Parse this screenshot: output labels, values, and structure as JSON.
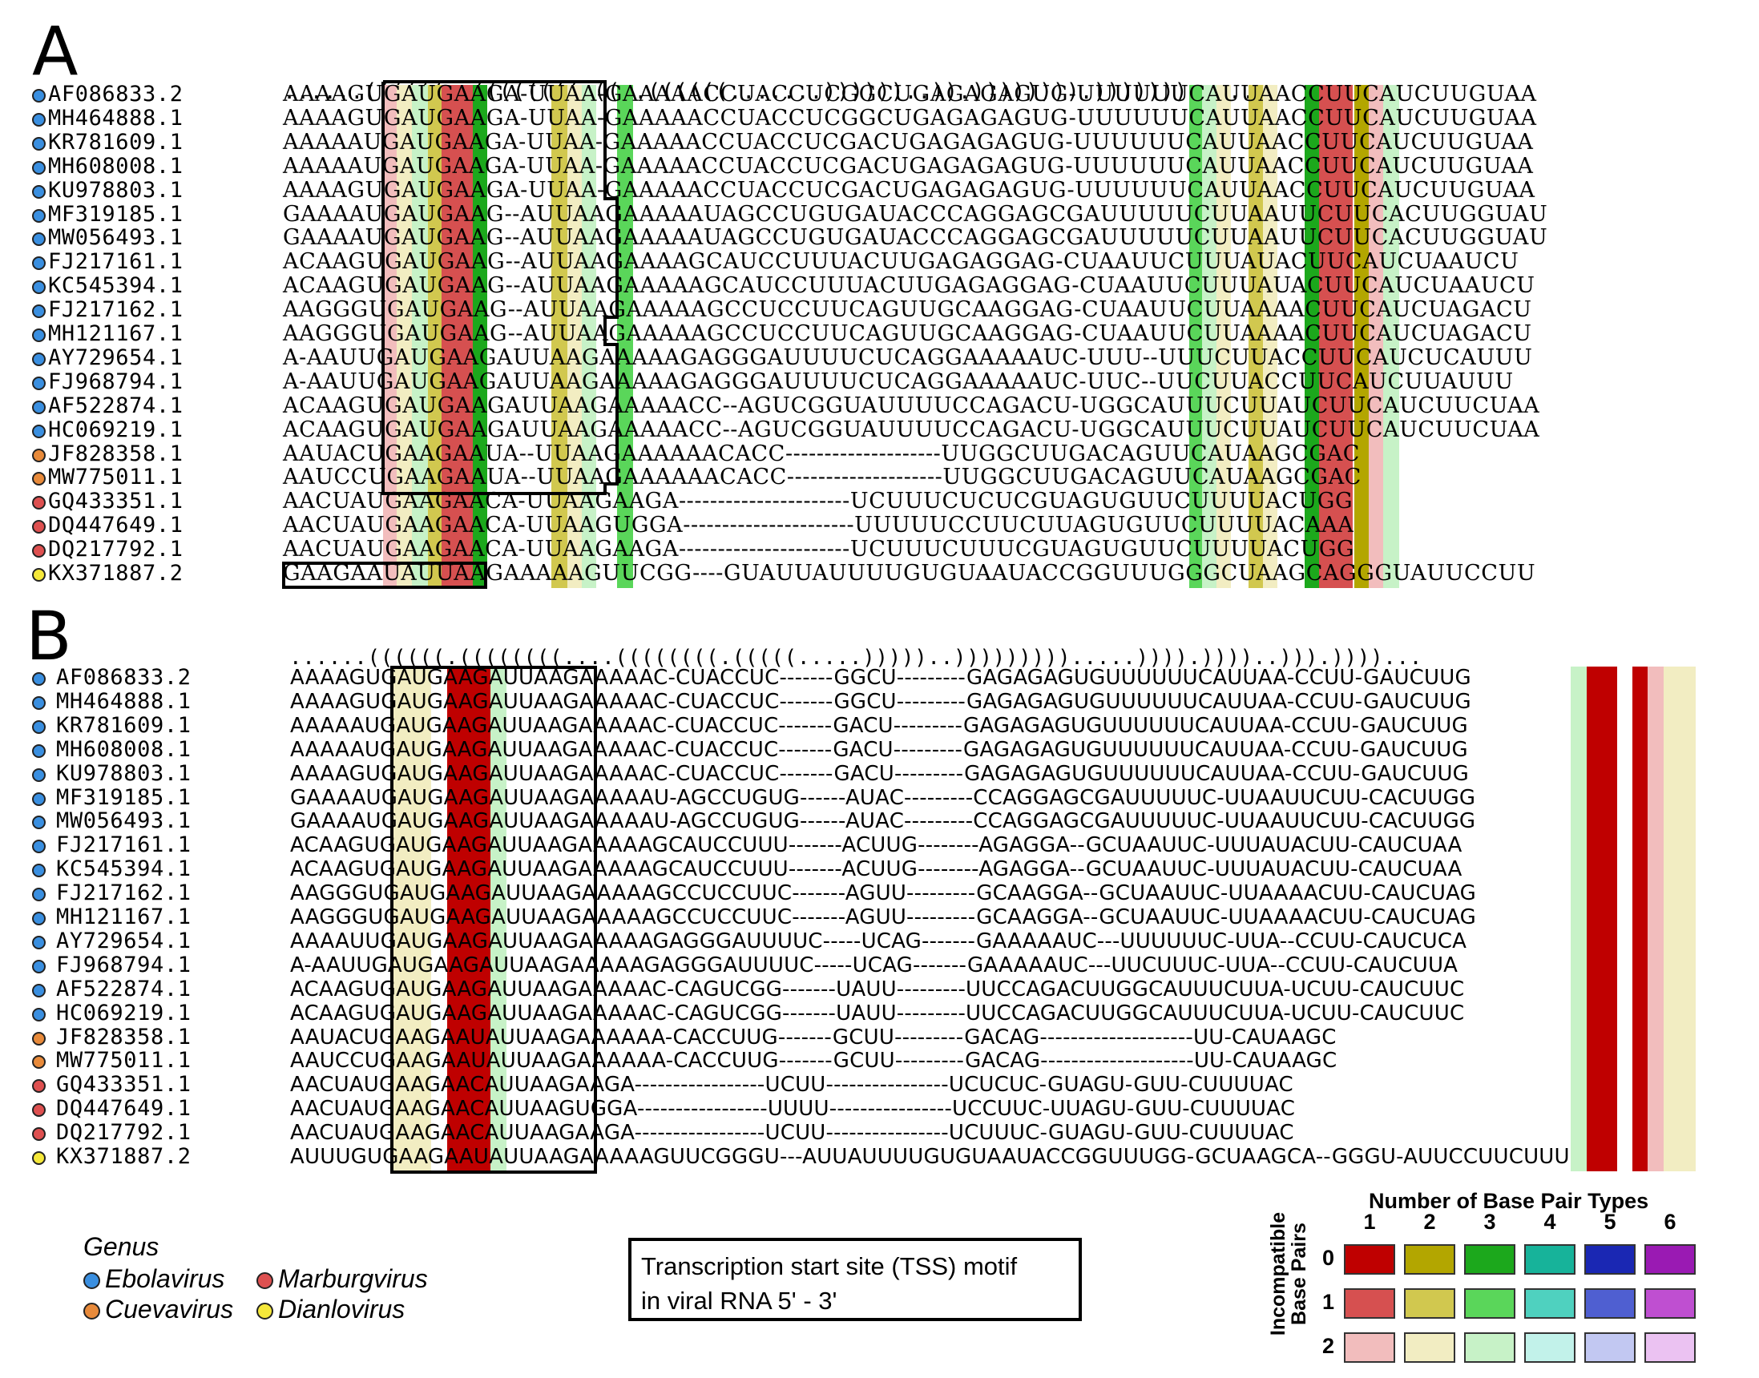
{
  "colors": {
    "ebolavirus": "#3a8fe0",
    "marburgvirus": "#de5050",
    "cuevavirus": "#e88a3a",
    "dianlovirus": "#f5e83a",
    "pair_types": [
      [
        "#bf0000",
        "#b3a600",
        "#1ca81c",
        "#17b39a",
        "#1a27b3",
        "#9a1ab3"
      ],
      [
        "#d65050",
        "#d1c84f",
        "#5ad65a",
        "#4fd1bf",
        "#4f5fd1",
        "#bf4fd1"
      ],
      [
        "#f2bdbd",
        "#f2edc2",
        "#c7f2c7",
        "#c2f2ea",
        "#c2c8f2",
        "#ebc2f2"
      ]
    ]
  },
  "panel_a": {
    "label": "A",
    "structure": "......((((((..((((((((.((..((((((.......))))))..)).)))))))).)))))))......",
    "rows": [
      {
        "accession": "AF086833.2",
        "genus": "ebolavirus",
        "sequence": "AAAAGUGAUGAAGA-UUAA-GAAAAACCUACCUCGGCUGAGAGAGUG-UUUUUUCAUUAACCUUCAUCUUGUAA"
      },
      {
        "accession": "MH464888.1",
        "genus": "ebolavirus",
        "sequence": "AAAAGUGAUGAAGA-UUAA-GAAAAACCUACCUCGGCUGAGAGAGUG-UUUUUUCAUUAACCUUCAUCUUGUAA"
      },
      {
        "accession": "KR781609.1",
        "genus": "ebolavirus",
        "sequence": "AAAAAUGAUGAAGA-UUAA-GAAAAACCUACCUCGACUGAGAGAGUG-UUUUUUCAUUAACCUUCAUCUUGUAA"
      },
      {
        "accession": "MH608008.1",
        "genus": "ebolavirus",
        "sequence": "AAAAAUGAUGAAGA-UUAA-GAAAAACCUACCUCGACUGAGAGAGUG-UUUUUUCAUUAACCUUCAUCUUGUAA"
      },
      {
        "accession": "KU978803.1",
        "genus": "ebolavirus",
        "sequence": "AAAAGUGAUGAAGA-UUAA-GAAAAACCUACCUCGACUGAGAGAGUG-UUUUUUCAUUAACCUUCAUCUUGUAA"
      },
      {
        "accession": "MF319185.1",
        "genus": "ebolavirus",
        "sequence": "GAAAAUGAUGAAG--AUUAAGAAAAAUAGCCUGUGAUACCCAGGAGCGAUUUUUCUUAAUUCUUCACUUGGUAU"
      },
      {
        "accession": "MW056493.1",
        "genus": "ebolavirus",
        "sequence": "GAAAAUGAUGAAG--AUUAAGAAAAAUAGCCUGUGAUACCCAGGAGCGAUUUUUCUUAAUUCUUCACUUGGUAU"
      },
      {
        "accession": "FJ217161.1",
        "genus": "ebolavirus",
        "sequence": "ACAAGUGAUGAAG--AUUAAGAAAAGCAUCCUUUACUUGAGAGGAG-CUAAUUCUUUAUACUUCAUCUAAUCU"
      },
      {
        "accession": "KC545394.1",
        "genus": "ebolavirus",
        "sequence": "ACAAGUGAUGAAG--AUUAAGAAAAAGCAUCCUUUACUUGAGAGGAG-CUAAUUCUUUAUACUUCAUCUAAUCU"
      },
      {
        "accession": "FJ217162.1",
        "genus": "ebolavirus",
        "sequence": "AAGGGUGAUGAAG--AUUAAGAAAAAGCCUCCUUCAGUUGCAAGGAG-CUAAUUCUUAAAACUUCAUCUAGACU"
      },
      {
        "accession": "MH121167.1",
        "genus": "ebolavirus",
        "sequence": "AAGGGUGAUGAAG--AUUAAGAAAAAGCCUCCUUCAGUUGCAAGGAG-CUAAUUCUUAAAACUUCAUCUAGACU"
      },
      {
        "accession": "AY729654.1",
        "genus": "ebolavirus",
        "sequence": "A-AAUUGAUGAAGAUUAAGAAAAAGAGGGAUUUUCUCAGGAAAAAUC-UUU--UUUCUUACCUUCAUCUCAUUU"
      },
      {
        "accession": "FJ968794.1",
        "genus": "ebolavirus",
        "sequence": "A-AAUUGAUGAAGAUUAAGAAAAAGAGGGAUUUUCUCAGGAAAAAUC-UUC--UUCUUACCUUCAUCUUAUUU"
      },
      {
        "accession": "AF522874.1",
        "genus": "ebolavirus",
        "sequence": "ACAAGUGAUGAAGAUUAAGAAAAACC--AGUCGGUAUUUUCCAGACU-UGGCAUUUCUUAUCUUCAUCUUCUAA"
      },
      {
        "accession": "HC069219.1",
        "genus": "ebolavirus",
        "sequence": "ACAAGUGAUGAAGAUUAAGAAAAACC--AGUCGGUAUUUUCCAGACU-UGGCAUUUCUUAUCUUCAUCUUCUAA"
      },
      {
        "accession": "JF828358.1",
        "genus": "cuevavirus",
        "sequence": "AAUACUGAAGAAUA--UUAAGAAAAAACACC--------------------UUGGCUUGACAGUUCAUAAGCGAC"
      },
      {
        "accession": "MW775011.1",
        "genus": "cuevavirus",
        "sequence": "AAUCCUGAAGAAUA--UUAAGAAAAAACACC--------------------UUGGCUUGACAGUUCAUAAGCGAC"
      },
      {
        "accession": "GQ433351.1",
        "genus": "marburgvirus",
        "sequence": "AACUAUGAAGAACA-UUAAGAAGA----------------------UCUUUCUCUCGUAGUGUUCUUUUACUGG"
      },
      {
        "accession": "DQ447649.1",
        "genus": "marburgvirus",
        "sequence": "AACUAUGAAGAACA-UUAAGUGGA----------------------UUUUUCCUUCUUAGUGUUCUUUUACAAA"
      },
      {
        "accession": "DQ217792.1",
        "genus": "marburgvirus",
        "sequence": "AACUAUGAAGAACA-UUAAGAAGA----------------------UCUUUCUUUCGUAGUGUUCUUUUACUGG"
      },
      {
        "accession": "KX371887.2",
        "genus": "dianlovirus",
        "sequence": "GAAGAAUAUUAAGAAAAAGUUCGG----GUAUUAUUUUGUGUAAUACCGGUUUGGGCUAAGCAGGGUAUUCCUU"
      }
    ]
  },
  "panel_b": {
    "label": "B",
    "structure": "......((((((.((((((((....((((((((.(((((.....)))))..))))))))).....)))).))))..))).))))...",
    "rows": [
      {
        "accession": "AF086833.2",
        "genus": "ebolavirus",
        "sequence": "AAAAGUGAUGAAGAUUAAGAAAAAC-CUACCUC-------GGCU---------GAGAGAGUGUUUUUUCAUUAA-CCUU-GAUCUUG"
      },
      {
        "accession": "MH464888.1",
        "genus": "ebolavirus",
        "sequence": "AAAAGUGAUGAAGAUUAAGAAAAAC-CUACCUC-------GGCU---------GAGAGAGUGUUUUUUCAUUAA-CCUU-GAUCUUG"
      },
      {
        "accession": "KR781609.1",
        "genus": "ebolavirus",
        "sequence": "AAAAAUGAUGAAGAUUAAGAAAAAC-CUACCUC-------GACU---------GAGAGAGUGUUUUUUCAUUAA-CCUU-GAUCUUG"
      },
      {
        "accession": "MH608008.1",
        "genus": "ebolavirus",
        "sequence": "AAAAAUGAUGAAGAUUAAGAAAAAC-CUACCUC-------GACU---------GAGAGAGUGUUUUUUCAUUAA-CCUU-GAUCUUG"
      },
      {
        "accession": "KU978803.1",
        "genus": "ebolavirus",
        "sequence": "AAAAGUGAUGAAGAUUAAGAAAAAC-CUACCUC-------GACU---------GAGAGAGUGUUUUUUCAUUAA-CCUU-GAUCUUG"
      },
      {
        "accession": "MF319185.1",
        "genus": "ebolavirus",
        "sequence": "GAAAAUGAUGAAGAUUAAGAAAAAU-AGCCUGUG------AUAC---------CCAGGAGCGAUUUUUC-UUAAUUCUU-CACUUGG"
      },
      {
        "accession": "MW056493.1",
        "genus": "ebolavirus",
        "sequence": "GAAAAUGAUGAAGAUUAAGAAAAAU-AGCCUGUG------AUAC---------CCAGGAGCGAUUUUUC-UUAAUUCUU-CACUUGG"
      },
      {
        "accession": "FJ217161.1",
        "genus": "ebolavirus",
        "sequence": "ACAAGUGAUGAAGAUUAAGAAAAAGCAUCCUUU-------ACUUG--------AGAGGA--GCUAAUUC-UUUAUACUU-CAUCUAA"
      },
      {
        "accession": "KC545394.1",
        "genus": "ebolavirus",
        "sequence": "ACAAGUGAUGAAGAUUAAGAAAAAGCAUCCUUU-------ACUUG--------AGAGGA--GCUAAUUC-UUUAUACUU-CAUCUAA"
      },
      {
        "accession": "FJ217162.1",
        "genus": "ebolavirus",
        "sequence": "AAGGGUGAUGAAGAUUAAGAAAAAGCCUCCUUC-------AGUU---------GCAAGGA--GCUAAUUC-UUAAAACUU-CAUCUAG"
      },
      {
        "accession": "MH121167.1",
        "genus": "ebolavirus",
        "sequence": "AAGGGUGAUGAAGAUUAAGAAAAAGCCUCCUUC-------AGUU---------GCAAGGA--GCUAAUUC-UUAAAACUU-CAUCUAG"
      },
      {
        "accession": "AY729654.1",
        "genus": "ebolavirus",
        "sequence": "AAAAUUGAUGAAGAUUAAGAAAAAGAGGGAUUUUC-----UCAG-------GAAAAAUC---UUUUUUC-UUA--CCUU-CAUCUCA"
      },
      {
        "accession": "FJ968794.1",
        "genus": "ebolavirus",
        "sequence": "A-AAUUGAUGAAGAUUAAGAAAAAGAGGGAUUUUC-----UCAG-------GAAAAAUC---UUCUUUC-UUA--CCUU-CAUCUUA"
      },
      {
        "accession": "AF522874.1",
        "genus": "ebolavirus",
        "sequence": "ACAAGUGAUGAAGAUUAAGAAAAAC-CAGUCGG-------UAUU---------UUCCAGACUUGGCAUUUCUUA-UCUU-CAUCUUC"
      },
      {
        "accession": "HC069219.1",
        "genus": "ebolavirus",
        "sequence": "ACAAGUGAUGAAGAUUAAGAAAAAC-CAGUCGG-------UAUU---------UUCCAGACUUGGCAUUUCUUA-UCUU-CAUCUUC"
      },
      {
        "accession": "JF828358.1",
        "genus": "cuevavirus",
        "sequence": "AAUACUGAAGAAUAUUAAGAAAAAA-CACCUUG-------GCUU---------GACAG--------------------UU-CAUAAGC"
      },
      {
        "accession": "MW775011.1",
        "genus": "cuevavirus",
        "sequence": "AAUCCUGAAGAAUAUUAAGAAAAAA-CACCUUG-------GCUU---------GACAG--------------------UU-CAUAAGC"
      },
      {
        "accession": "GQ433351.1",
        "genus": "marburgvirus",
        "sequence": "AACUAUGAAGAACAUUAAGAAGA-----------------UCUU----------------UCUCUC-GUAGU-GUU-CUUUUAC"
      },
      {
        "accession": "DQ447649.1",
        "genus": "marburgvirus",
        "sequence": "AACUAUGAAGAACAUUAAGUGGA-----------------UUUU----------------UCCUUC-UUAGU-GUU-CUUUUAC"
      },
      {
        "accession": "DQ217792.1",
        "genus": "marburgvirus",
        "sequence": "AACUAUGAAGAACAUUAAGAAGA-----------------UCUU----------------UCUUUC-GUAGU-GUU-CUUUUAC"
      },
      {
        "accession": "KX371887.2",
        "genus": "dianlovirus",
        "sequence": "AUUUGUGAAGAAUAUUAAGAAAAAGUUCGGGU---AUUAUUUUGUGUAAUACCGGUUUGG-GCUAAGCA--GGGU-AUUCCUUCUUU"
      }
    ]
  },
  "legend": {
    "title": "Genus",
    "items": [
      {
        "label": "Ebolavirus",
        "color_key": "ebolavirus"
      },
      {
        "label": "Marburgvirus",
        "color_key": "marburgvirus"
      },
      {
        "label": "Cuevavirus",
        "color_key": "cuevavirus"
      },
      {
        "label": "Dianlovirus",
        "color_key": "dianlovirus"
      }
    ]
  },
  "tss_box": {
    "line1": "Transcription start site (TSS) motif",
    "line2": "in viral RNA 5' - 3'"
  },
  "color_legend": {
    "title": "Number of Base Pair Types",
    "columns": [
      "1",
      "2",
      "3",
      "4",
      "5",
      "6"
    ],
    "rows": [
      "0",
      "1",
      "2"
    ],
    "side_label_1": "Incompatible",
    "side_label_2": "Base Pairs"
  }
}
